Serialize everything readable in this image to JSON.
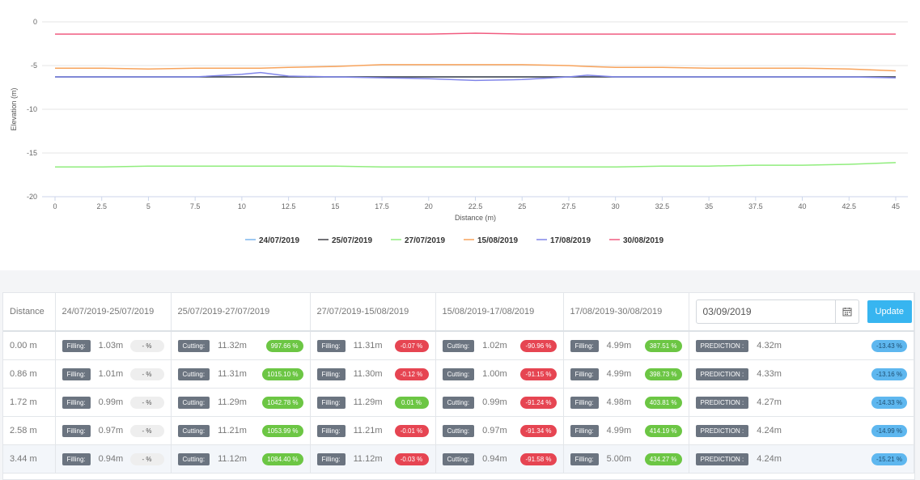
{
  "chart_data": {
    "type": "line",
    "xlabel": "Distance (m)",
    "ylabel": "Elevation (m)",
    "xlim": [
      0,
      45
    ],
    "ylim": [
      -20,
      0
    ],
    "xticks": [
      "0",
      "2.5",
      "5",
      "7.5",
      "10",
      "12.5",
      "15",
      "17.5",
      "20",
      "22.5",
      "25",
      "27.5",
      "30",
      "32.5",
      "35",
      "37.5",
      "40",
      "42.5",
      "45"
    ],
    "yticks": [
      "0",
      "-5",
      "-10",
      "-15",
      "-20"
    ],
    "grid": true,
    "legend_position": "bottom",
    "x": [
      0,
      2.5,
      5,
      7.5,
      10,
      11,
      12.5,
      15,
      17.5,
      20,
      22.5,
      25,
      27.5,
      28.5,
      30,
      32.5,
      35,
      37.5,
      40,
      42.5,
      45
    ],
    "series": [
      {
        "name": "24/07/2019",
        "color": "#7cb5ec",
        "values": [
          -6.3,
          -6.3,
          -6.3,
          -6.3,
          -6.3,
          -6.3,
          -6.3,
          -6.3,
          -6.3,
          -6.3,
          -6.3,
          -6.3,
          -6.3,
          -6.3,
          -6.3,
          -6.3,
          -6.3,
          -6.3,
          -6.3,
          -6.3,
          -6.3
        ]
      },
      {
        "name": "25/07/2019",
        "color": "#434348",
        "values": [
          -6.3,
          -6.3,
          -6.3,
          -6.3,
          -6.3,
          -6.3,
          -6.3,
          -6.3,
          -6.3,
          -6.3,
          -6.3,
          -6.3,
          -6.3,
          -6.3,
          -6.3,
          -6.3,
          -6.3,
          -6.3,
          -6.3,
          -6.3,
          -6.3
        ]
      },
      {
        "name": "27/07/2019",
        "color": "#90ed7d",
        "values": [
          -16.6,
          -16.6,
          -16.5,
          -16.5,
          -16.5,
          -16.5,
          -16.5,
          -16.5,
          -16.6,
          -16.6,
          -16.6,
          -16.6,
          -16.6,
          -16.6,
          -16.6,
          -16.5,
          -16.5,
          -16.4,
          -16.4,
          -16.3,
          -16.1
        ]
      },
      {
        "name": "15/08/2019",
        "color": "#f7a35c",
        "values": [
          -5.3,
          -5.3,
          -5.4,
          -5.3,
          -5.3,
          -5.3,
          -5.2,
          -5.1,
          -4.9,
          -4.9,
          -4.9,
          -4.9,
          -5.0,
          -5.1,
          -5.2,
          -5.2,
          -5.3,
          -5.3,
          -5.3,
          -5.4,
          -5.6
        ]
      },
      {
        "name": "17/08/2019",
        "color": "#8085e9",
        "values": [
          -6.3,
          -6.3,
          -6.3,
          -6.3,
          -6.0,
          -5.8,
          -6.2,
          -6.3,
          -6.4,
          -6.5,
          -6.7,
          -6.6,
          -6.3,
          -6.1,
          -6.3,
          -6.3,
          -6.3,
          -6.3,
          -6.3,
          -6.3,
          -6.4
        ]
      },
      {
        "name": "30/08/2019",
        "color": "#f15c80",
        "values": [
          -1.4,
          -1.4,
          -1.4,
          -1.4,
          -1.4,
          -1.4,
          -1.4,
          -1.4,
          -1.4,
          -1.4,
          -1.3,
          -1.4,
          -1.4,
          -1.4,
          -1.4,
          -1.4,
          -1.4,
          -1.4,
          -1.4,
          -1.4,
          -1.4
        ]
      }
    ]
  },
  "table": {
    "headers": [
      "Distance",
      "24/07/2019-25/07/2019",
      "25/07/2019-27/07/2019",
      "27/07/2019-15/08/2019",
      "15/08/2019-17/08/2019",
      "17/08/2019-30/08/2019"
    ],
    "date_value": "03/09/2019",
    "update_label": "Update",
    "prediction_label": "PREDICTION :",
    "rows": [
      {
        "distance": "0.00 m",
        "c1": {
          "tag": "Filling:",
          "value": "1.03m",
          "pct": "- %",
          "status": "neutral"
        },
        "c2": {
          "tag": "Cutting:",
          "value": "11.32m",
          "pct": "997.66 %",
          "status": "green"
        },
        "c3": {
          "tag": "Filling:",
          "value": "11.31m",
          "pct": "-0.07 %",
          "status": "red"
        },
        "c4": {
          "tag": "Cutting:",
          "value": "1.02m",
          "pct": "-90.96 %",
          "status": "red"
        },
        "c5": {
          "tag": "Filling:",
          "value": "4.99m",
          "pct": "387.51 %",
          "status": "green"
        },
        "prediction": "4.32m",
        "pred_pct": "-13.43 %"
      },
      {
        "distance": "0.86 m",
        "c1": {
          "tag": "Filling:",
          "value": "1.01m",
          "pct": "- %",
          "status": "neutral"
        },
        "c2": {
          "tag": "Cutting:",
          "value": "11.31m",
          "pct": "1015.10 %",
          "status": "green"
        },
        "c3": {
          "tag": "Filling:",
          "value": "11.30m",
          "pct": "-0.12 %",
          "status": "red"
        },
        "c4": {
          "tag": "Cutting:",
          "value": "1.00m",
          "pct": "-91.15 %",
          "status": "red"
        },
        "c5": {
          "tag": "Filling:",
          "value": "4.99m",
          "pct": "398.73 %",
          "status": "green"
        },
        "prediction": "4.33m",
        "pred_pct": "-13.16 %"
      },
      {
        "distance": "1.72 m",
        "c1": {
          "tag": "Filling:",
          "value": "0.99m",
          "pct": "- %",
          "status": "neutral"
        },
        "c2": {
          "tag": "Cutting:",
          "value": "11.29m",
          "pct": "1042.78 %",
          "status": "green"
        },
        "c3": {
          "tag": "Filling:",
          "value": "11.29m",
          "pct": "0.01 %",
          "status": "green"
        },
        "c4": {
          "tag": "Cutting:",
          "value": "0.99m",
          "pct": "-91.24 %",
          "status": "red"
        },
        "c5": {
          "tag": "Filling:",
          "value": "4.98m",
          "pct": "403.81 %",
          "status": "green"
        },
        "prediction": "4.27m",
        "pred_pct": "-14.33 %"
      },
      {
        "distance": "2.58 m",
        "c1": {
          "tag": "Filling:",
          "value": "0.97m",
          "pct": "- %",
          "status": "neutral"
        },
        "c2": {
          "tag": "Cutting:",
          "value": "11.21m",
          "pct": "1053.99 %",
          "status": "green"
        },
        "c3": {
          "tag": "Filling:",
          "value": "11.21m",
          "pct": "-0.01 %",
          "status": "red"
        },
        "c4": {
          "tag": "Cutting:",
          "value": "0.97m",
          "pct": "-91.34 %",
          "status": "red"
        },
        "c5": {
          "tag": "Filling:",
          "value": "4.99m",
          "pct": "414.19 %",
          "status": "green"
        },
        "prediction": "4.24m",
        "pred_pct": "-14.99 %"
      },
      {
        "distance": "3.44 m",
        "c1": {
          "tag": "Filling:",
          "value": "0.94m",
          "pct": "- %",
          "status": "neutral"
        },
        "c2": {
          "tag": "Cutting:",
          "value": "11.12m",
          "pct": "1084.40 %",
          "status": "green"
        },
        "c3": {
          "tag": "Filling:",
          "value": "11.12m",
          "pct": "-0.03 %",
          "status": "red"
        },
        "c4": {
          "tag": "Cutting:",
          "value": "0.94m",
          "pct": "-91.58 %",
          "status": "red"
        },
        "c5": {
          "tag": "Filling:",
          "value": "5.00m",
          "pct": "434.27 %",
          "status": "green"
        },
        "prediction": "4.24m",
        "pred_pct": "-15.21 %"
      }
    ]
  }
}
